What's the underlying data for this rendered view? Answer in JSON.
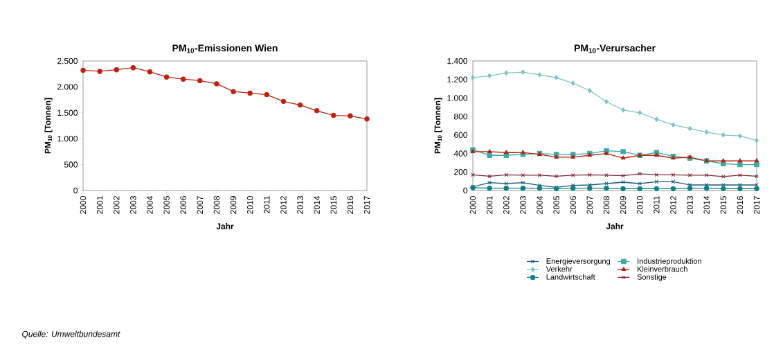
{
  "chart_data": [
    {
      "type": "line",
      "title": "PM$_{10}$-Emissionen Wien",
      "xlabel": "Jahr",
      "ylabel": "PM$_{10}$ [Tonnen]",
      "categories": [
        "2000",
        "2001",
        "2002",
        "2003",
        "2004",
        "2005",
        "2006",
        "2007",
        "2008",
        "2009",
        "2010",
        "2011",
        "2012",
        "2013",
        "2014",
        "2015",
        "2016",
        "2017"
      ],
      "series": [
        {
          "color": "#c0200f",
          "marker": "circle",
          "values": [
            2320,
            2300,
            2330,
            2370,
            2290,
            2190,
            2150,
            2120,
            2060,
            1910,
            1880,
            1850,
            1720,
            1650,
            1540,
            1450,
            1440,
            1380
          ]
        }
      ],
      "ylim": [
        0,
        2500
      ],
      "yticks": [
        0,
        500,
        {
          "value": 1000,
          "label": "1.000"
        },
        {
          "value": 1500,
          "label": "1.500"
        },
        {
          "value": 2000,
          "label": "2.000"
        },
        {
          "value": 2500,
          "label": "2.500"
        }
      ],
      "annotations": [
        "Quelle: Umweltbundesamt"
      ]
    },
    {
      "type": "line",
      "title": "PM$_{10}$-Verursacher",
      "xlabel": "Jahr",
      "ylabel": "PM$_{10}$ [Tonnen]",
      "categories": [
        "2000",
        "2001",
        "2002",
        "2003",
        "2004",
        "2005",
        "2006",
        "2007",
        "2008",
        "2009",
        "2010",
        "2011",
        "2012",
        "2013",
        "2014",
        "2015",
        "2016",
        "2017"
      ],
      "series": [
        {
          "name": "Energieversorgung",
          "color": "#1a5b80",
          "marker": "cross",
          "values": [
            40,
            85,
            75,
            85,
            55,
            35,
            55,
            60,
            75,
            90,
            75,
            95,
            95,
            60,
            60,
            60,
            60,
            60
          ]
        },
        {
          "name": "Industrieproduktion",
          "color": "#3fa8a6",
          "marker": "square",
          "values": [
            440,
            380,
            380,
            390,
            400,
            390,
            390,
            400,
            430,
            420,
            380,
            410,
            370,
            350,
            320,
            290,
            280,
            280
          ]
        },
        {
          "name": "Verkehr",
          "color": "#7fc4c4",
          "marker": "diamond",
          "values": [
            1220,
            1240,
            1270,
            1280,
            1250,
            1220,
            1160,
            1080,
            960,
            870,
            840,
            770,
            710,
            670,
            630,
            600,
            590,
            540
          ]
        },
        {
          "name": "Kleinverbrauch",
          "color": "#b5200d",
          "marker": "triangle",
          "values": [
            420,
            420,
            410,
            410,
            390,
            360,
            360,
            380,
            400,
            350,
            380,
            380,
            350,
            360,
            320,
            320,
            320,
            320
          ]
        },
        {
          "name": "Landwirtschaft",
          "color": "#0f8080",
          "marker": "circle",
          "values": [
            30,
            25,
            25,
            25,
            25,
            20,
            25,
            25,
            25,
            20,
            20,
            20,
            20,
            25,
            25,
            20,
            20,
            20
          ]
        },
        {
          "name": "Sonstige",
          "color": "#7b2a3a",
          "marker": "cross",
          "values": [
            170,
            155,
            170,
            165,
            165,
            155,
            165,
            170,
            165,
            160,
            180,
            170,
            170,
            165,
            165,
            150,
            165,
            155
          ]
        }
      ],
      "ylim": [
        0,
        1400
      ],
      "yticks": [
        0,
        200,
        400,
        600,
        800,
        {
          "value": 1000,
          "label": "1.000"
        },
        {
          "value": 1200,
          "label": "1.200"
        },
        {
          "value": 1400,
          "label": "1.400"
        }
      ],
      "legend": "bottom"
    }
  ]
}
